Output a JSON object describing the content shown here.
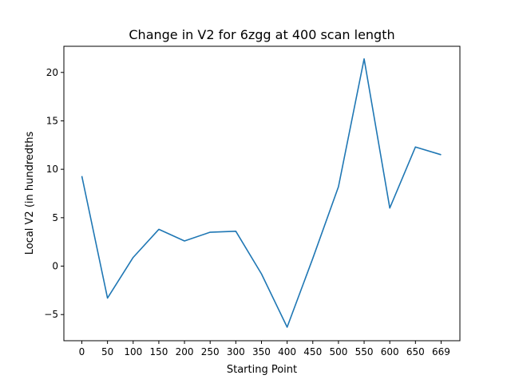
{
  "chart_data": {
    "type": "line",
    "title": "Change in V2 for 6zgg at 400 scan length",
    "xlabel": "Starting Point",
    "ylabel": "Local V2 (in hundredths",
    "x_ticks": [
      "0",
      "50",
      "100",
      "150",
      "200",
      "250",
      "300",
      "350",
      "400",
      "450",
      "500",
      "550",
      "600",
      "650",
      "669"
    ],
    "y_ticks": [
      -5,
      0,
      5,
      10,
      15,
      20
    ],
    "y_tick_labels": [
      "−5",
      "0",
      "5",
      "10",
      "15",
      "20"
    ],
    "ylim": [
      -7.7,
      22.7
    ],
    "x": [
      "0",
      "50",
      "100",
      "150",
      "200",
      "250",
      "300",
      "350",
      "400",
      "450",
      "500",
      "550",
      "600",
      "650",
      "669"
    ],
    "series": [
      {
        "values": [
          9.3,
          -3.3,
          0.9,
          3.8,
          2.6,
          3.5,
          3.6,
          -0.8,
          -6.3,
          0.8,
          8.2,
          21.4,
          6.0,
          12.3,
          11.5
        ],
        "color": "#1f77b4"
      }
    ],
    "grid": false,
    "legend": "none"
  }
}
